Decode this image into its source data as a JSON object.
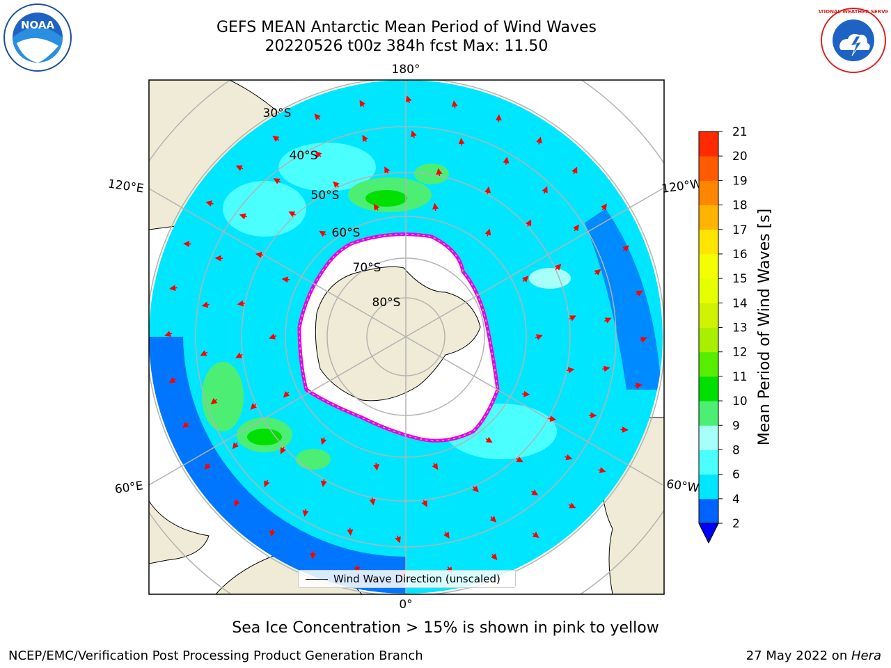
{
  "header": {
    "title_line1": "GEFS MEAN Antarctic Mean Period of Wind Waves",
    "title_line2": "20220526 t00z 384h fcst   Max: 11.50"
  },
  "logos": {
    "left": {
      "icon": "noaa-logo",
      "text": "NOAA"
    },
    "right": {
      "icon": "national-weather-service-logo",
      "text": "NATIONAL WEATHER SERVICE"
    }
  },
  "map": {
    "projection": "south-polar-stereographic",
    "longitude_labels": {
      "top": "180°",
      "bottom": "0°",
      "left_upper": "120°E",
      "left_lower": "60°E",
      "right_upper": "120°W",
      "right_lower": "60°W"
    },
    "latitude_labels": [
      "30°S",
      "40°S",
      "50°S",
      "60°S",
      "70°S",
      "80°S"
    ],
    "colors": {
      "land": "#efebd6",
      "ice": "#ffffff",
      "gridline": "#b3b3b3",
      "arrow": "#ff0000"
    },
    "legend": {
      "label": "Wind Wave Direction (unscaled)"
    }
  },
  "colorbar": {
    "label": "Mean Period of Wind Waves [s]",
    "ticks": [
      "2",
      "4",
      "6",
      "8",
      "9",
      "10",
      "11",
      "12",
      "13",
      "14",
      "15",
      "16",
      "17",
      "18",
      "19",
      "20",
      "21"
    ],
    "colors": [
      "#0062ff",
      "#00e6ff",
      "#4cffff",
      "#a6fff8",
      "#4cee74",
      "#00e000",
      "#55ee00",
      "#a8f000",
      "#cff200",
      "#e6ff00",
      "#f3ff00",
      "#ffe600",
      "#ffb400",
      "#ff8600",
      "#ff5a00",
      "#ff2a00",
      "#ff0000"
    ],
    "under_color": "#0000ff"
  },
  "caption": "Sea Ice Concentration > 15% is shown in pink to yellow",
  "footer": {
    "left": "NCEP/EMC/Verification Post Processing Product Generation Branch",
    "right_date": "27 May 2022 on ",
    "right_host": "Hera"
  }
}
